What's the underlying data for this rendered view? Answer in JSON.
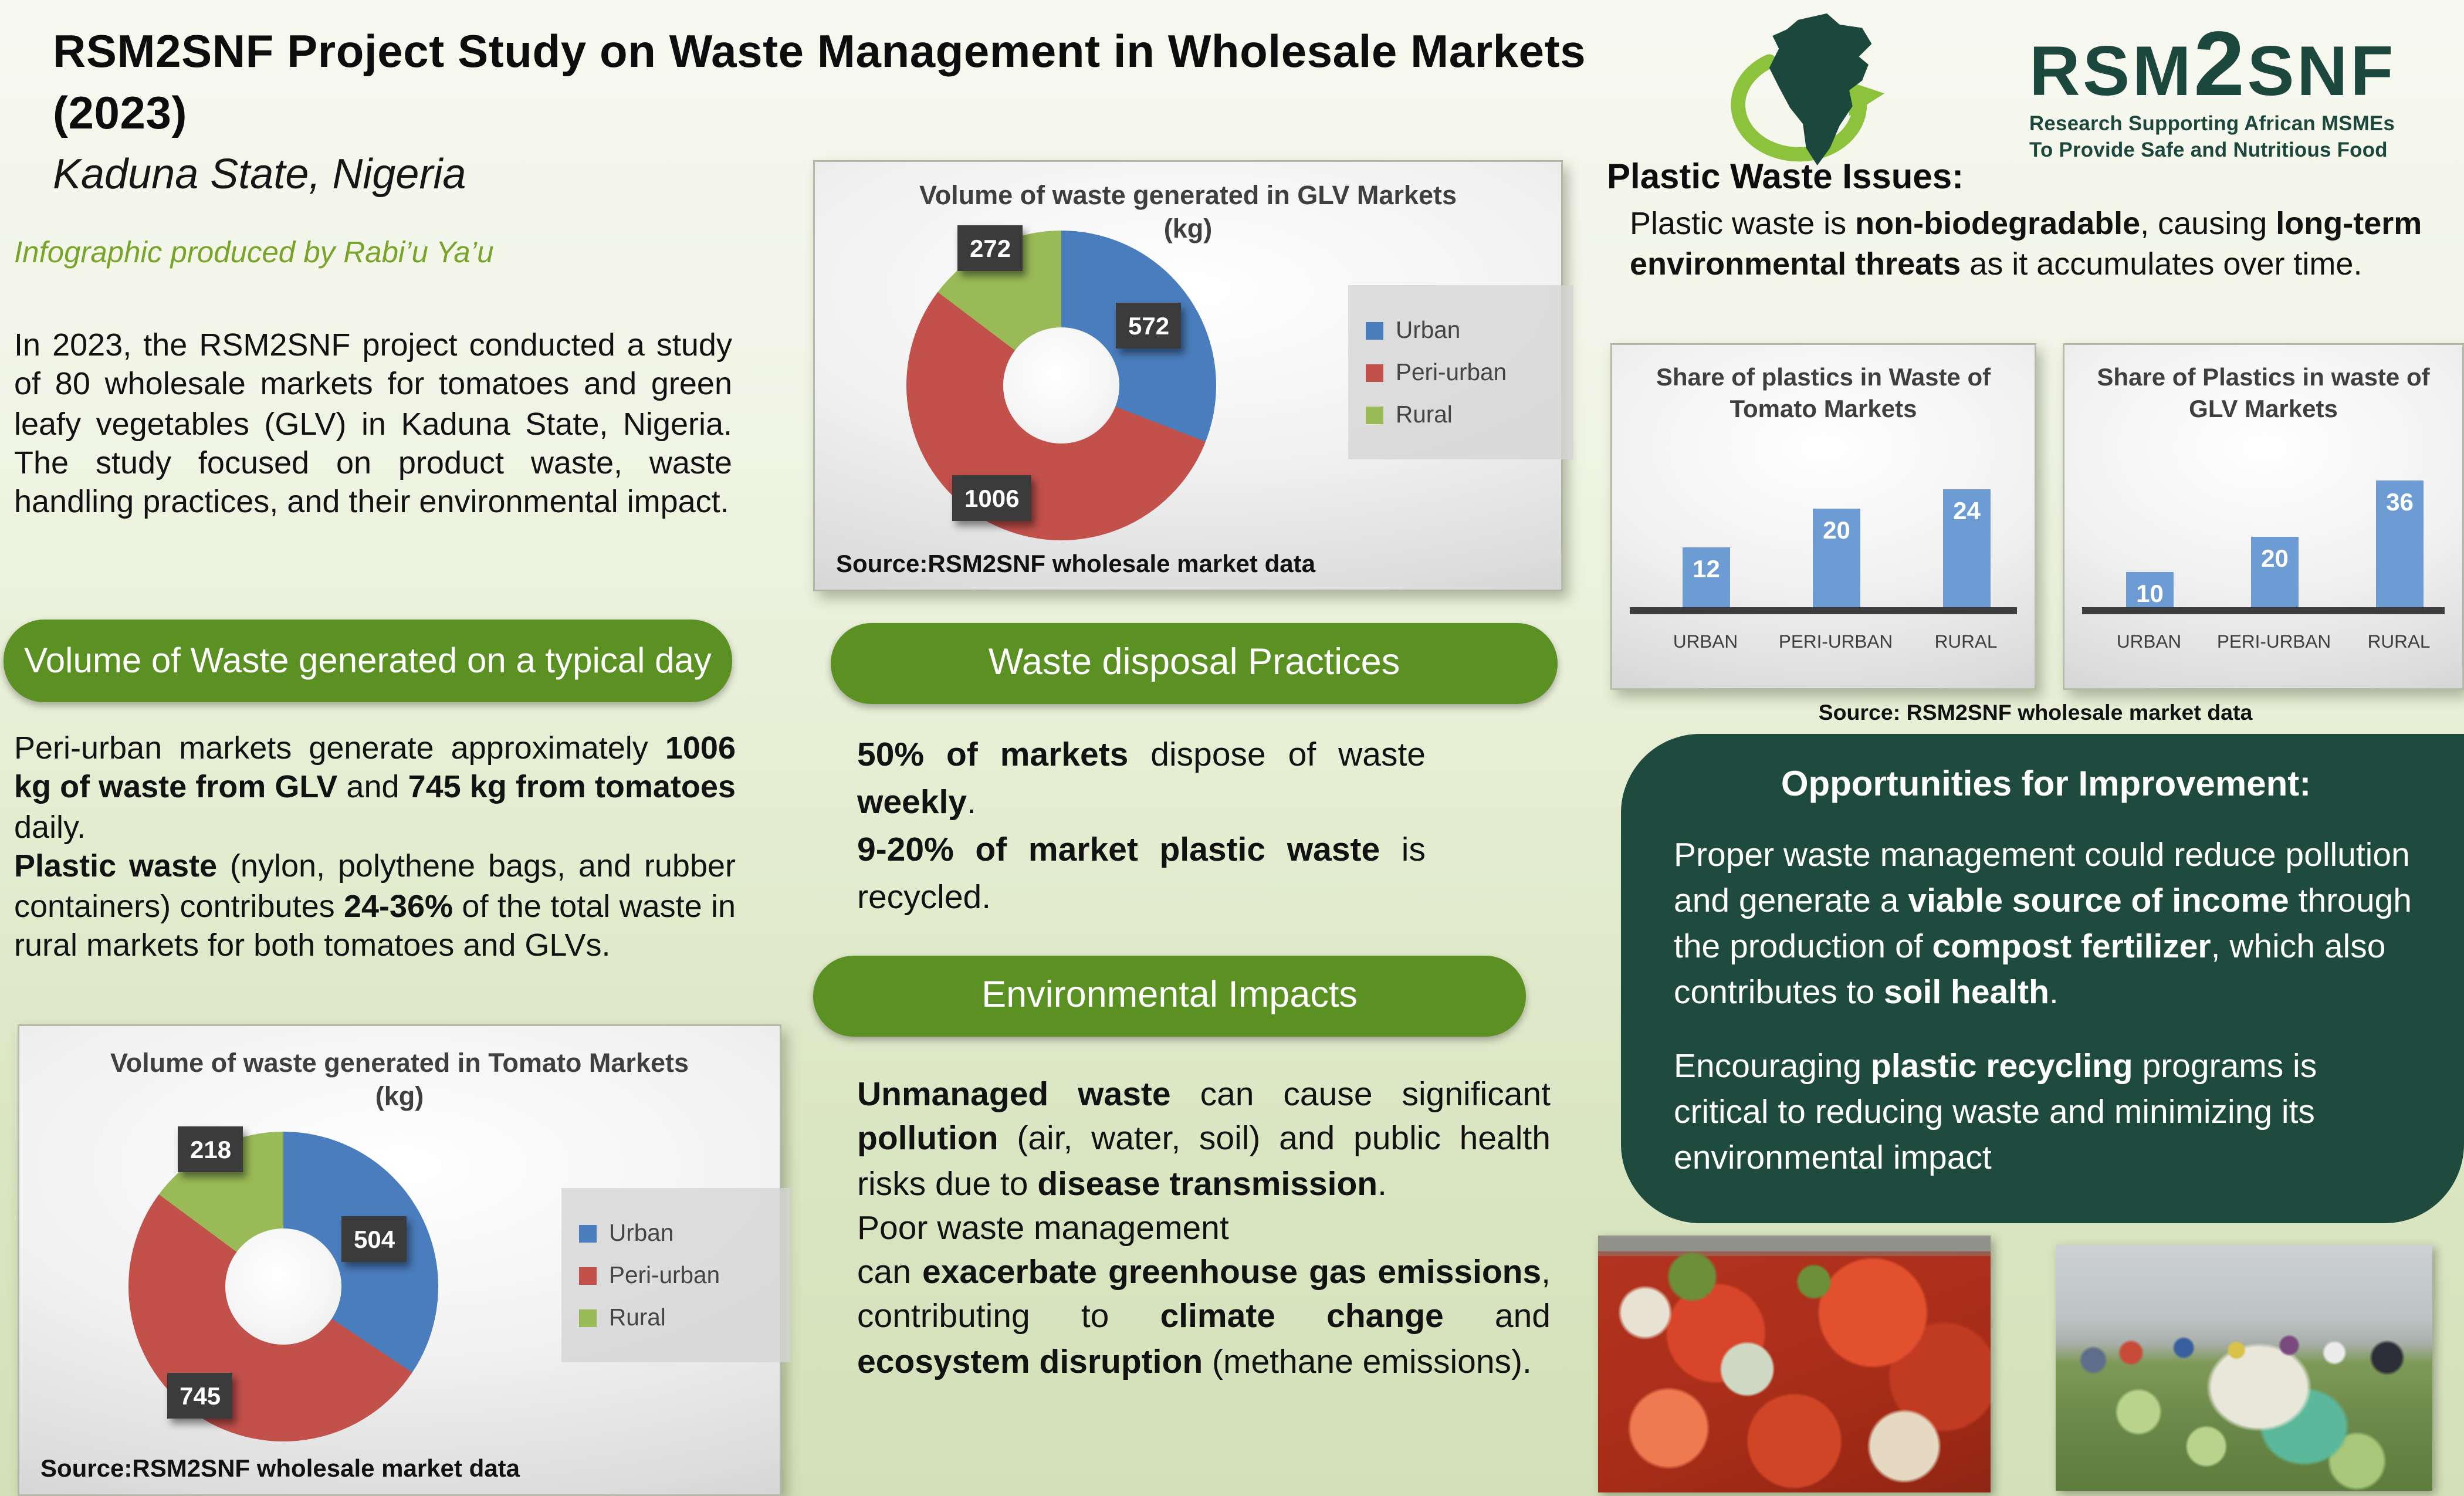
{
  "colors": {
    "pill_green": "#5b9023",
    "dark_green_box": "#1f4a3e",
    "logo_green": "#1c473c",
    "swoosh_green": "#8cc23c",
    "byline_green": "#79a42c",
    "donut_blue": "#4a7dbd",
    "donut_red": "#c2504b",
    "donut_green": "#9aba57",
    "bar_blue": "#6d9bd3"
  },
  "header": {
    "title_line1": "RSM2SNF Project Study on Waste Management in Wholesale Markets",
    "title_line2": "(2023)",
    "subtitle": "Kaduna State, Nigeria",
    "byline": "Infographic produced by Rabi’u  Ya’u"
  },
  "logo": {
    "wordmark_pre": "RSM",
    "wordmark_two": "2",
    "wordmark_post": "SNF",
    "tagline1": "Research Supporting African MSMEs",
    "tagline2": "To Provide Safe and Nutritious Food"
  },
  "intro": {
    "runs": [
      {
        "t": "In 2023, the RSM2SNF project conducted a study of 80 wholesale markets for tomatoes and green leafy vegetables (GLV) in Kaduna State, Nigeria. The study focused on product waste, waste handling practices, and their environmental impact."
      }
    ]
  },
  "left": {
    "pill": "Volume of Waste generated on a typical day",
    "para1_runs": [
      {
        "t": "Peri-urban markets generate approximately "
      },
      {
        "t": "1006 kg of waste from GLV",
        "b": true
      },
      {
        "t": " and "
      },
      {
        "t": "745 kg from tomatoes",
        "b": true
      },
      {
        "t": " daily."
      }
    ],
    "para2_runs": [
      {
        "t": "Plastic waste",
        "b": true
      },
      {
        "t": " (nylon, polythene bags, and rubber containers) contributes "
      },
      {
        "t": "24-36%",
        "b": true
      },
      {
        "t": " of the total waste in rural markets for both tomatoes and GLVs."
      }
    ]
  },
  "middle": {
    "pill_disposal": "Waste disposal Practices",
    "disposal_p1_runs": [
      {
        "t": "50% of markets",
        "b": true
      },
      {
        "t": " dispose of waste "
      },
      {
        "t": "weekly",
        "b": true
      },
      {
        "t": "."
      }
    ],
    "disposal_p2_runs": [
      {
        "t": "9-20% of market plastic waste",
        "b": true
      },
      {
        "t": " is recycled."
      }
    ],
    "pill_env": "Environmental Impacts",
    "env_p1_runs": [
      {
        "t": "Unmanaged waste",
        "b": true
      },
      {
        "t": " can cause significant "
      },
      {
        "t": "pollution",
        "b": true
      },
      {
        "t": " (air, water, soil) and public health risks due to "
      },
      {
        "t": "disease transmission",
        "b": true
      },
      {
        "t": "."
      }
    ],
    "env_p2_runs": [
      {
        "t": "Poor waste management"
      }
    ],
    "env_p3_runs": [
      {
        "t": "can "
      },
      {
        "t": "exacerbate greenhouse gas emissions",
        "b": true
      },
      {
        "t": ", contributing to "
      },
      {
        "t": "climate change",
        "b": true
      },
      {
        "t": " and "
      },
      {
        "t": "ecosystem disruption",
        "b": true
      },
      {
        "t": " (methane emissions)."
      }
    ]
  },
  "right": {
    "plastic_heading": "Plastic Waste Issues:",
    "plastic_runs": [
      {
        "t": "Plastic waste is "
      },
      {
        "t": "non-biodegradable",
        "b": true
      },
      {
        "t": ", causing "
      },
      {
        "t": "long-term environmental threats",
        "b": true
      },
      {
        "t": " as it accumulates over time."
      }
    ],
    "bar_source": "Source: RSM2SNF wholesale  market data",
    "opportunities_title": "Opportunities for Improvement:",
    "opp_p1_runs": [
      {
        "t": "Proper waste management could reduce pollution and generate a "
      },
      {
        "t": "viable source of income",
        "b": true
      },
      {
        "t": " through the production of "
      },
      {
        "t": "compost fertilizer",
        "b": true
      },
      {
        "t": ", which also contributes to "
      },
      {
        "t": "soil health",
        "b": true
      },
      {
        "t": "."
      }
    ],
    "opp_p2_runs": [
      {
        "t": "Encouraging "
      },
      {
        "t": "plastic recycling",
        "b": true
      },
      {
        "t": " programs is critical to reducing waste and minimizing its environmental impact"
      }
    ],
    "opp_p3": "."
  },
  "chart_data": [
    {
      "id": "glv_waste_donut",
      "type": "donut",
      "title": "Volume of waste generated in GLV Markets (kg)",
      "categories": [
        "Urban",
        "Peri-urban",
        "Rural"
      ],
      "values": [
        572,
        1006,
        272
      ],
      "colors": [
        "#4a7dbd",
        "#c2504b",
        "#9aba57"
      ],
      "start_angle": 0,
      "direction": "clockwise",
      "hole_ratio": 0.37,
      "legend_position": "right",
      "value_labels": "dark boxes on slices",
      "source": "Source:RSM2SNF wholesale market data"
    },
    {
      "id": "tomato_waste_donut",
      "type": "donut",
      "title": "Volume of waste generated in Tomato Markets (kg)",
      "categories": [
        "Urban",
        "Peri-urban",
        "Rural"
      ],
      "values": [
        504,
        745,
        218
      ],
      "colors": [
        "#4a7dbd",
        "#c2504b",
        "#9aba57"
      ],
      "start_angle": 0,
      "direction": "clockwise",
      "hole_ratio": 0.37,
      "legend_position": "right",
      "value_labels": "dark boxes on slices",
      "source": "Source:RSM2SNF wholesale market data"
    },
    {
      "id": "tomato_plastics_bar",
      "type": "bar",
      "title": "Share of plastics in Waste of Tomato Markets",
      "categories": [
        "URBAN",
        "PERI-URBAN",
        "RURAL"
      ],
      "values": [
        12,
        20,
        24
      ],
      "bar_color": "#6d9bd3",
      "baseline_color": "#3e3e3e",
      "value_labels": "white, inside top of bars",
      "grid": "off",
      "y_axis": "hidden"
    },
    {
      "id": "glv_plastics_bar",
      "type": "bar",
      "title": "Share of Plastics in waste of GLV Markets",
      "categories": [
        "URBAN",
        "PERI-URBAN",
        "RURAL"
      ],
      "values": [
        10,
        20,
        36
      ],
      "bar_color": "#6d9bd3",
      "baseline_color": "#3e3e3e",
      "value_labels": "white, inside top of bars",
      "grid": "off",
      "y_axis": "hidden"
    }
  ]
}
